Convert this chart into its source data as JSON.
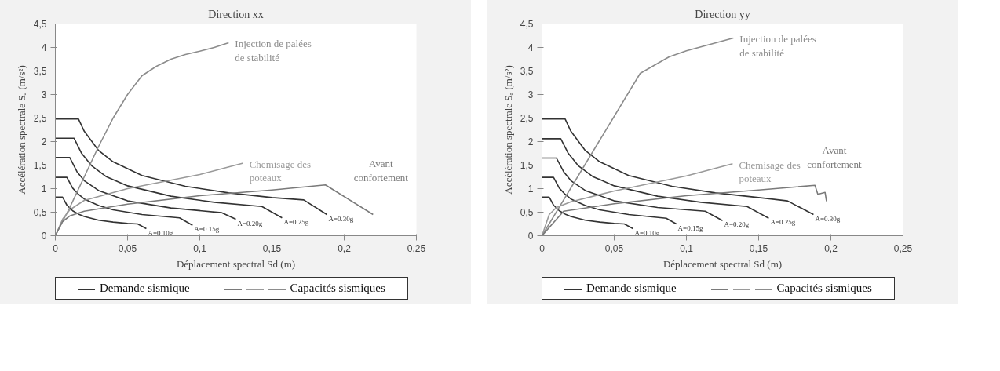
{
  "chart_data": [
    {
      "type": "line",
      "title": "Direction xx",
      "xlabel": "Déplacement spectral Sd (m)",
      "ylabel": "Accélération spectrale Sₐ (m/s²)",
      "xlim": [
        0,
        0.25
      ],
      "ylim": [
        0,
        4.5
      ],
      "xticks": [
        {
          "value": 0,
          "label": "0"
        },
        {
          "value": 0.05,
          "label": "0,05"
        },
        {
          "value": 0.1,
          "label": "0,1"
        },
        {
          "value": 0.15,
          "label": "0,15"
        },
        {
          "value": 0.2,
          "label": "0,2"
        },
        {
          "value": 0.25,
          "label": "0,25"
        }
      ],
      "yticks": [
        {
          "value": 0,
          "label": "0"
        },
        {
          "value": 0.5,
          "label": "0,5"
        },
        {
          "value": 1,
          "label": "1"
        },
        {
          "value": 1.5,
          "label": "1,5"
        },
        {
          "value": 2,
          "label": "2"
        },
        {
          "value": 2.5,
          "label": "2,5"
        },
        {
          "value": 3,
          "label": "3"
        },
        {
          "value": 3.5,
          "label": "3,5"
        },
        {
          "value": 4,
          "label": "4"
        },
        {
          "value": 4.5,
          "label": "4,5"
        }
      ],
      "grid": false,
      "legend": "bottom",
      "line_style": "solid",
      "annotations": [
        "Demande sismique",
        "Capacités sismiques"
      ],
      "series": [
        {
          "name": "A=0.10g",
          "color": "#333333",
          "x": [
            0,
            0.005,
            0.008,
            0.012,
            0.016,
            0.02,
            0.03,
            0.04,
            0.05,
            0.057,
            0.063
          ],
          "values": [
            0.82,
            0.82,
            0.65,
            0.53,
            0.46,
            0.41,
            0.33,
            0.29,
            0.26,
            0.25,
            0.15
          ]
        },
        {
          "name": "A=0.15g",
          "color": "#333333",
          "x": [
            0,
            0.008,
            0.012,
            0.016,
            0.02,
            0.03,
            0.04,
            0.06,
            0.086,
            0.095
          ],
          "values": [
            1.24,
            1.24,
            1.01,
            0.88,
            0.78,
            0.64,
            0.55,
            0.45,
            0.38,
            0.22
          ]
        },
        {
          "name": "A=0.20g",
          "color": "#333333",
          "x": [
            0,
            0.01,
            0.015,
            0.02,
            0.03,
            0.05,
            0.08,
            0.115,
            0.125
          ],
          "values": [
            1.66,
            1.66,
            1.36,
            1.17,
            0.96,
            0.74,
            0.59,
            0.49,
            0.35
          ]
        },
        {
          "name": "A=0.25g",
          "color": "#333333",
          "x": [
            0,
            0.013,
            0.018,
            0.025,
            0.035,
            0.05,
            0.08,
            0.11,
            0.143,
            0.157
          ],
          "values": [
            2.07,
            2.07,
            1.76,
            1.49,
            1.26,
            1.06,
            0.84,
            0.71,
            0.62,
            0.38
          ]
        },
        {
          "name": "A=0.30g",
          "color": "#333333",
          "x": [
            0,
            0.016,
            0.02,
            0.03,
            0.04,
            0.06,
            0.09,
            0.12,
            0.15,
            0.172,
            0.188
          ],
          "values": [
            2.48,
            2.48,
            2.22,
            1.81,
            1.57,
            1.28,
            1.05,
            0.91,
            0.81,
            0.76,
            0.45
          ]
        },
        {
          "name": "Injection de palées de stabilité",
          "color": "#8c8c8c",
          "x": [
            0,
            0.01,
            0.02,
            0.03,
            0.04,
            0.05,
            0.06,
            0.07,
            0.08,
            0.09,
            0.1,
            0.11,
            0.12
          ],
          "values": [
            0,
            0.6,
            1.25,
            1.9,
            2.5,
            3.0,
            3.4,
            3.6,
            3.75,
            3.85,
            3.92,
            4.0,
            4.1
          ]
        },
        {
          "name": "Chemisage des poteaux",
          "color": "#9a9a9a",
          "x": [
            0,
            0.005,
            0.01,
            0.02,
            0.05,
            0.1,
            0.13
          ],
          "values": [
            0,
            0.35,
            0.55,
            0.75,
            1.0,
            1.3,
            1.54
          ]
        },
        {
          "name": "Avant confortement",
          "color": "#7a7a7a",
          "x": [
            0,
            0.005,
            0.01,
            0.02,
            0.05,
            0.1,
            0.15,
            0.187,
            0.22
          ],
          "values": [
            0,
            0.3,
            0.42,
            0.52,
            0.67,
            0.85,
            0.97,
            1.08,
            0.45
          ]
        }
      ]
    },
    {
      "type": "line",
      "title": "Direction yy",
      "xlabel": "Déplacement spectral Sd (m)",
      "ylabel": "Accélération spectrale Sₐ (m/s²)",
      "xlim": [
        0,
        0.25
      ],
      "ylim": [
        0,
        4.5
      ],
      "xticks": [
        {
          "value": 0,
          "label": "0"
        },
        {
          "value": 0.05,
          "label": "0,05"
        },
        {
          "value": 0.1,
          "label": "0,1"
        },
        {
          "value": 0.15,
          "label": "0,15"
        },
        {
          "value": 0.2,
          "label": "0,2"
        },
        {
          "value": 0.25,
          "label": "0,25"
        }
      ],
      "yticks": [
        {
          "value": 0,
          "label": "0"
        },
        {
          "value": 0.5,
          "label": "0,5"
        },
        {
          "value": 1,
          "label": "1"
        },
        {
          "value": 1.5,
          "label": "1,5"
        },
        {
          "value": 2,
          "label": "2"
        },
        {
          "value": 2.5,
          "label": "2,5"
        },
        {
          "value": 3,
          "label": "3"
        },
        {
          "value": 3.5,
          "label": "3,5"
        },
        {
          "value": 4,
          "label": "4"
        },
        {
          "value": 4.5,
          "label": "4,5"
        }
      ],
      "grid": false,
      "legend": "bottom",
      "line_style": "solid",
      "annotations": [
        "Demande sismique",
        "Capacités sismiques"
      ],
      "series": [
        {
          "name": "A=0.10g",
          "color": "#333333",
          "x": [
            0,
            0.005,
            0.008,
            0.012,
            0.016,
            0.02,
            0.03,
            0.04,
            0.05,
            0.057,
            0.063
          ],
          "values": [
            0.82,
            0.82,
            0.65,
            0.53,
            0.46,
            0.41,
            0.33,
            0.29,
            0.26,
            0.25,
            0.15
          ]
        },
        {
          "name": "A=0.15g",
          "color": "#333333",
          "x": [
            0,
            0.008,
            0.012,
            0.016,
            0.02,
            0.03,
            0.04,
            0.06,
            0.086,
            0.093
          ],
          "values": [
            1.24,
            1.24,
            1.01,
            0.88,
            0.78,
            0.64,
            0.55,
            0.45,
            0.37,
            0.25
          ]
        },
        {
          "name": "A=0.20g",
          "color": "#333333",
          "x": [
            0,
            0.01,
            0.015,
            0.02,
            0.03,
            0.05,
            0.08,
            0.113,
            0.125
          ],
          "values": [
            1.65,
            1.65,
            1.36,
            1.17,
            0.96,
            0.74,
            0.6,
            0.52,
            0.32
          ]
        },
        {
          "name": "A=0.25g",
          "color": "#333333",
          "x": [
            0,
            0.013,
            0.018,
            0.025,
            0.035,
            0.05,
            0.08,
            0.11,
            0.142,
            0.157
          ],
          "values": [
            2.06,
            2.06,
            1.76,
            1.49,
            1.26,
            1.06,
            0.84,
            0.71,
            0.62,
            0.37
          ]
        },
        {
          "name": "A=0.30g",
          "color": "#333333",
          "x": [
            0,
            0.016,
            0.02,
            0.03,
            0.04,
            0.06,
            0.09,
            0.12,
            0.15,
            0.17,
            0.188
          ],
          "values": [
            2.48,
            2.48,
            2.22,
            1.81,
            1.57,
            1.28,
            1.05,
            0.91,
            0.81,
            0.74,
            0.45
          ]
        },
        {
          "name": "Injection de palées de stabilité",
          "color": "#8c8c8c",
          "x": [
            0,
            0.068,
            0.088,
            0.1,
            0.1325
          ],
          "values": [
            0,
            3.45,
            3.8,
            3.93,
            4.2
          ]
        },
        {
          "name": "Chemisage des poteaux",
          "color": "#9a9a9a",
          "x": [
            0,
            0.005,
            0.01,
            0.02,
            0.05,
            0.1,
            0.132
          ],
          "values": [
            0,
            0.45,
            0.6,
            0.72,
            0.95,
            1.27,
            1.53
          ]
        },
        {
          "name": "Avant confortement",
          "color": "#7a7a7a",
          "x": [
            0,
            0.015,
            0.05,
            0.1,
            0.15,
            0.189,
            0.191,
            0.196,
            0.197
          ],
          "values": [
            0,
            0.52,
            0.68,
            0.85,
            0.97,
            1.07,
            0.88,
            0.92,
            0.73
          ]
        }
      ]
    }
  ]
}
